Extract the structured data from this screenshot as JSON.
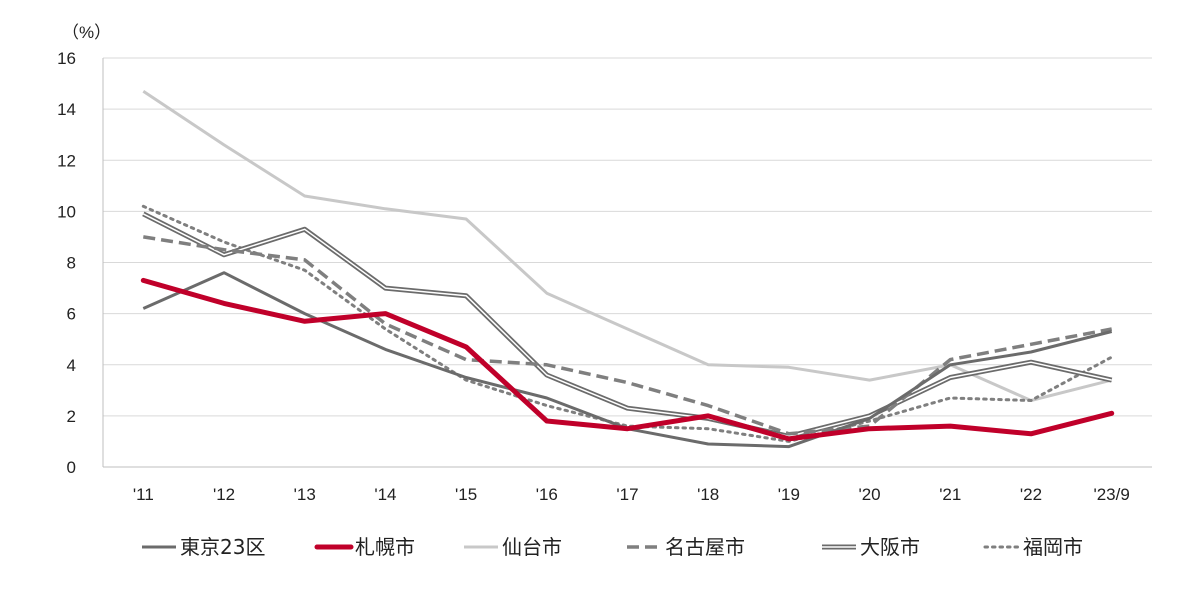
{
  "chart_data": {
    "type": "line",
    "unit_label": "（%）",
    "categories": [
      "'11",
      "'12",
      "'13",
      "'14",
      "'15",
      "'16",
      "'17",
      "'18",
      "'19",
      "'20",
      "'21",
      "'22",
      "'23/9"
    ],
    "ylim": [
      0,
      16
    ],
    "yticks": [
      0,
      2,
      4,
      6,
      8,
      10,
      12,
      14,
      16
    ],
    "grid": true,
    "legend_position": "bottom",
    "series": [
      {
        "name": "東京23区",
        "style": "solid",
        "color": "#6b6b6b",
        "values": [
          6.2,
          7.6,
          6.0,
          4.6,
          3.5,
          2.7,
          1.5,
          0.9,
          0.8,
          1.9,
          4.0,
          4.5,
          5.3
        ]
      },
      {
        "name": "札幌市",
        "style": "solid-thick",
        "color": "#c0002a",
        "values": [
          7.3,
          6.4,
          5.7,
          6.0,
          4.7,
          1.8,
          1.5,
          2.0,
          1.1,
          1.5,
          1.6,
          1.3,
          2.1
        ]
      },
      {
        "name": "仙台市",
        "style": "solid",
        "color": "#c8c8c8",
        "values": [
          14.7,
          12.6,
          10.6,
          10.1,
          9.7,
          6.8,
          5.4,
          4.0,
          3.9,
          3.4,
          4.0,
          2.6,
          3.4
        ]
      },
      {
        "name": "名古屋市",
        "style": "dashed",
        "color": "#7f7f7f",
        "values": [
          9.0,
          8.5,
          8.1,
          5.6,
          4.2,
          4.0,
          3.3,
          2.4,
          1.3,
          1.6,
          4.2,
          4.8,
          5.4
        ]
      },
      {
        "name": "大阪市",
        "style": "double",
        "color": "#6b6b6b",
        "values": [
          9.9,
          8.3,
          9.3,
          7.0,
          6.7,
          3.6,
          2.3,
          1.9,
          1.2,
          2.0,
          3.5,
          4.1,
          3.4
        ]
      },
      {
        "name": "福岡市",
        "style": "dotted",
        "color": "#7f7f7f",
        "values": [
          10.2,
          8.8,
          7.7,
          5.4,
          3.4,
          2.4,
          1.6,
          1.5,
          1.0,
          1.8,
          2.7,
          2.6,
          4.3
        ]
      }
    ]
  }
}
